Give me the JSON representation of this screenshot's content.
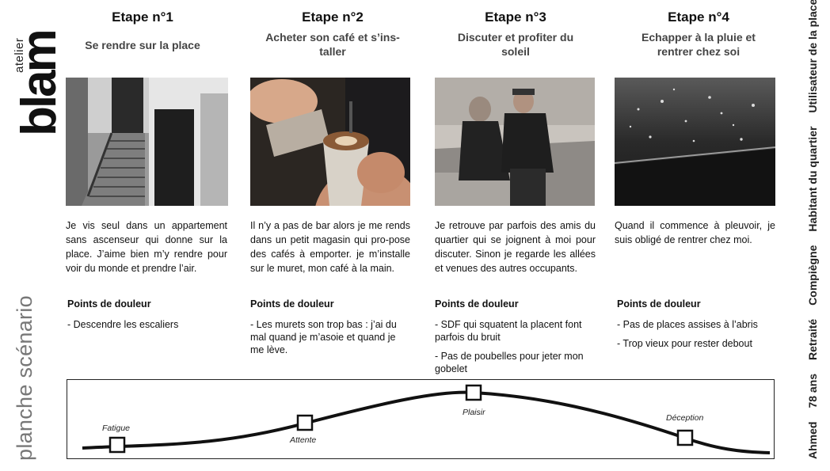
{
  "brand": {
    "small": "atelier",
    "large": "blam"
  },
  "document_label": "planche scénario",
  "persona": [
    "Ahmed",
    "78 ans",
    "Retraité",
    "Compiègne",
    "Habitant du quartier",
    "Utilisateur de la place"
  ],
  "steps": [
    {
      "title": "Etape n°1",
      "subtitle": "Se rendre sur la place",
      "photo": "escalier",
      "description": "Je vis seul dans un appartement sans ascenseur qui donne sur la place. J’aime bien m’y rendre pour voir du monde et prendre l’air.",
      "pain_title": "Points de douleur",
      "pains": [
        "- Descendre les escaliers"
      ]
    },
    {
      "title": "Etape n°2",
      "subtitle": "Acheter son café et s’ins-taller",
      "photo": "cafe",
      "description": "Il n’y a pas de bar alors je me rends dans un petit magasin qui pro-pose des cafés à emporter. je m’installe sur le muret, mon café à la main.",
      "pain_title": "Points de douleur",
      "pains": [
        "- Les murets son trop bas : j’ai du mal quand je m’asoie et quand je me lève."
      ]
    },
    {
      "title": "Etape n°3",
      "subtitle": "Discuter et profiter du soleil",
      "photo": "amis",
      "description": "Je retrouve par parfois des amis du quartier qui se joignent à moi pour discuter. Sinon je regarde les allées et venues des autres occupants.",
      "pain_title": "Points de douleur",
      "pains": [
        "- SDF qui squatent la placent font parfois du bruit",
        "- Pas de poubelles pour jeter mon gobelet"
      ]
    },
    {
      "title": "Etape n°4",
      "subtitle": "Echapper à la pluie et rentrer chez soi",
      "photo": "pluie",
      "description": "Quand il commence à pleuvoir, je suis obligé de rentrer chez moi.",
      "pain_title": "Points de douleur",
      "pains": [
        "- Pas de places assises à l’abris",
        "- Trop vieux pour rester debout"
      ]
    }
  ],
  "emotions": [
    "Fatigue",
    "Attente",
    "Plaisir",
    "Déception"
  ]
}
